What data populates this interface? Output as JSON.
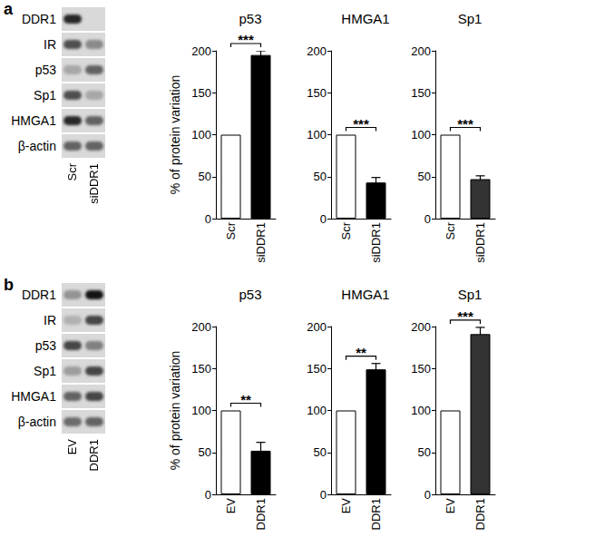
{
  "panels": [
    {
      "label": "a",
      "blot": {
        "lanes": [
          "Scr",
          "siDDR1"
        ],
        "rows": [
          {
            "name": "DDR1",
            "band_intensity": [
              0.9,
              0.0
            ]
          },
          {
            "name": "IR",
            "band_intensity": [
              0.7,
              0.4
            ]
          },
          {
            "name": "p53",
            "band_intensity": [
              0.25,
              0.6
            ]
          },
          {
            "name": "Sp1",
            "band_intensity": [
              0.7,
              0.25
            ]
          },
          {
            "name": "HMGA1",
            "band_intensity": [
              0.9,
              0.6
            ]
          },
          {
            "name": "β-actin",
            "band_intensity": [
              0.6,
              0.6
            ]
          }
        ]
      }
    },
    {
      "label": "b",
      "blot": {
        "lanes": [
          "EV",
          "DDR1"
        ],
        "rows": [
          {
            "name": "DDR1",
            "band_intensity": [
              0.35,
              1.0
            ]
          },
          {
            "name": "IR",
            "band_intensity": [
              0.2,
              0.75
            ]
          },
          {
            "name": "p53",
            "band_intensity": [
              0.75,
              0.45
            ]
          },
          {
            "name": "Sp1",
            "band_intensity": [
              0.3,
              0.75
            ]
          },
          {
            "name": "HMGA1",
            "band_intensity": [
              0.6,
              0.75
            ]
          },
          {
            "name": "β-actin",
            "band_intensity": [
              0.55,
              0.6
            ]
          }
        ]
      }
    }
  ],
  "chart_data": [
    {
      "type": "bar",
      "title": "p53",
      "ylabel": "% of protein variation",
      "categories": [
        "Scr",
        "siDDR1"
      ],
      "values": [
        100,
        195
      ],
      "errors": [
        null,
        5
      ],
      "colors": [
        "#ffffff",
        "#000000"
      ],
      "ylim": [
        0,
        200
      ],
      "yticks": [
        0,
        50,
        100,
        150,
        200
      ],
      "grid": false,
      "annotations": [
        "***"
      ]
    },
    {
      "type": "bar",
      "title": "HMGA1",
      "categories": [
        "Scr",
        "siDDR1"
      ],
      "values": [
        100,
        43
      ],
      "errors": [
        null,
        6
      ],
      "colors": [
        "#ffffff",
        "#000000"
      ],
      "ylim": [
        0,
        200
      ],
      "yticks": [
        0,
        50,
        100,
        150,
        200
      ],
      "grid": false,
      "annotations": [
        "***"
      ]
    },
    {
      "type": "bar",
      "title": "Sp1",
      "categories": [
        "Scr",
        "siDDR1"
      ],
      "values": [
        100,
        47
      ],
      "errors": [
        null,
        4
      ],
      "colors": [
        "#ffffff",
        "#333333"
      ],
      "ylim": [
        0,
        200
      ],
      "yticks": [
        0,
        50,
        100,
        150,
        200
      ],
      "grid": false,
      "annotations": [
        "***"
      ]
    },
    {
      "type": "bar",
      "title": "p53",
      "ylabel": "% of protein variation",
      "categories": [
        "EV",
        "DDR1"
      ],
      "values": [
        100,
        52
      ],
      "errors": [
        null,
        10
      ],
      "colors": [
        "#ffffff",
        "#000000"
      ],
      "ylim": [
        0,
        200
      ],
      "yticks": [
        0,
        50,
        100,
        150,
        200
      ],
      "grid": false,
      "annotations": [
        "**"
      ]
    },
    {
      "type": "bar",
      "title": "HMGA1",
      "categories": [
        "EV",
        "DDR1"
      ],
      "values": [
        100,
        149
      ],
      "errors": [
        null,
        7
      ],
      "colors": [
        "#ffffff",
        "#000000"
      ],
      "ylim": [
        0,
        200
      ],
      "yticks": [
        0,
        50,
        100,
        150,
        200
      ],
      "grid": false,
      "annotations": [
        "**"
      ]
    },
    {
      "type": "bar",
      "title": "Sp1",
      "categories": [
        "EV",
        "DDR1"
      ],
      "values": [
        100,
        191
      ],
      "errors": [
        null,
        8
      ],
      "colors": [
        "#ffffff",
        "#333333"
      ],
      "ylim": [
        0,
        200
      ],
      "yticks": [
        0,
        50,
        100,
        150,
        200
      ],
      "grid": false,
      "annotations": [
        "***"
      ]
    }
  ]
}
